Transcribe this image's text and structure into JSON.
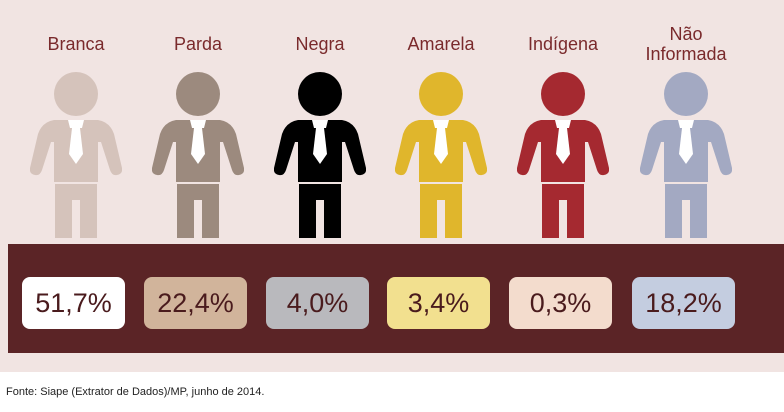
{
  "chart_data": {
    "type": "pictogram",
    "categories": [
      "Branca",
      "Parda",
      "Negra",
      "Amarela",
      "Indígena",
      "Não\nInformada"
    ],
    "values": [
      51.7,
      22.4,
      4.0,
      3.4,
      0.3,
      18.2
    ],
    "value_labels": [
      "51,7%",
      "22,4%",
      "4,0%",
      "3,4%",
      "0,3%",
      "18,2%"
    ],
    "unit": "%"
  },
  "colors": {
    "panel_bg": "#f1e4e2",
    "band_bg": "#5b2426",
    "figures": [
      "#d5c3bb",
      "#9c8a7e",
      "#000000",
      "#e0b62c",
      "#a52930",
      "#a3a9c2"
    ],
    "boxes": [
      "#ffffff",
      "#d1b49b",
      "#b9b9bd",
      "#f2e08f",
      "#f3dccd",
      "#c4cde0"
    ]
  },
  "source": "Fonte: Siape (Extrator de Dados)/MP, junho de 2014."
}
